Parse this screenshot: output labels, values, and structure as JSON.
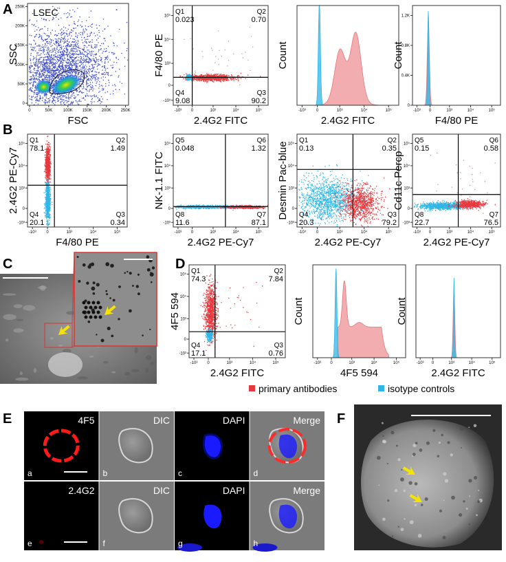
{
  "tick_sets": {
    "log": [
      "-10³",
      "0",
      "10³",
      "10⁴",
      "10⁵"
    ],
    "linear": [
      "0",
      "50K",
      "100K",
      "150K",
      "200K",
      "250K"
    ],
    "count": [
      "0",
      "0.4K",
      "0.8K",
      "1.2K"
    ]
  },
  "panels": [
    {
      "label": "A",
      "plots": [
        {
          "title": "LSEC",
          "xlabel": "FSC",
          "ylabel": "SSC"
        },
        {
          "xlabel": "2.4G2 FITC",
          "ylabel": "F4/80 PE",
          "quadrants": [
            {
              "name": "Q1",
              "value": "0.023"
            },
            {
              "name": "Q2",
              "value": "0.70"
            },
            {
              "name": "Q4",
              "value": "9.08"
            },
            {
              "name": "Q3",
              "value": "90.2"
            }
          ]
        },
        {
          "xlabel": "2.4G2 FITC",
          "ylabel": "Count"
        },
        {
          "xlabel": "F4/80 PE",
          "ylabel": "Count"
        }
      ]
    },
    {
      "label": "B",
      "plots": [
        {
          "xlabel": "F4/80 PE",
          "ylabel": "2.4G2 PE-Cy7",
          "quadrants": [
            {
              "name": "Q1",
              "value": "78.1"
            },
            {
              "name": "Q2",
              "value": "1.49"
            },
            {
              "name": "Q4",
              "value": "20.1"
            },
            {
              "name": "Q3",
              "value": "0.34"
            }
          ]
        },
        {
          "xlabel": "2.4G2 PE-Cy7",
          "ylabel": "NK-1.1 FITC",
          "quadrants": [
            {
              "name": "Q5",
              "value": "0.048"
            },
            {
              "name": "Q6",
              "value": "1.32"
            },
            {
              "name": "Q8",
              "value": "11.6"
            },
            {
              "name": "Q7",
              "value": "87.1"
            }
          ]
        },
        {
          "xlabel": "2.4G2 PE-Cy7",
          "ylabel": "Desmin Pac-blue",
          "quadrants": [
            {
              "name": "Q1",
              "value": "0.13"
            },
            {
              "name": "Q2",
              "value": "0.35"
            },
            {
              "name": "Q4",
              "value": "20.3"
            },
            {
              "name": "Q3",
              "value": "79.2"
            }
          ]
        },
        {
          "xlabel": "2.4G2 PE-Cy7",
          "ylabel": "Cd11c Percp",
          "quadrants": [
            {
              "name": "Q5",
              "value": "0.15"
            },
            {
              "name": "Q6",
              "value": "0.58"
            },
            {
              "name": "Q8",
              "value": "22.7"
            },
            {
              "name": "Q7",
              "value": "76.5"
            }
          ]
        }
      ]
    },
    {
      "label": "C"
    },
    {
      "label": "D",
      "plots": [
        {
          "xlabel": "2.4G2 FITC",
          "ylabel": "4F5 594",
          "quadrants": [
            {
              "name": "Q1",
              "value": "74.3"
            },
            {
              "name": "Q2",
              "value": "7.84"
            },
            {
              "name": "Q4",
              "value": "17.1"
            },
            {
              "name": "Q3",
              "value": "0.76"
            }
          ]
        },
        {
          "xlabel": "4F5 594",
          "ylabel": "Count"
        },
        {
          "xlabel": "2.4G2 FITC",
          "ylabel": "Count"
        }
      ],
      "legend": [
        "primary antibodies",
        "isotype controls"
      ]
    },
    {
      "label": "E",
      "tiles": [
        {
          "name": "4F5",
          "letter": "a"
        },
        {
          "name": "DIC",
          "letter": "b"
        },
        {
          "name": "DAPI",
          "letter": "c"
        },
        {
          "name": "Merge",
          "letter": "d"
        },
        {
          "name": "2.4G2",
          "letter": "e"
        },
        {
          "name": "DIC",
          "letter": "f"
        },
        {
          "name": "DAPI",
          "letter": "g"
        },
        {
          "name": "Merge",
          "letter": "h"
        }
      ]
    },
    {
      "label": "F"
    }
  ]
}
